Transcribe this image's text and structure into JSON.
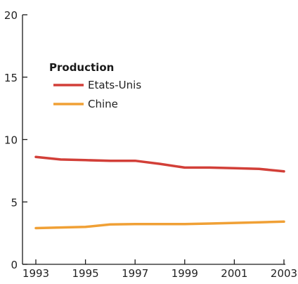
{
  "chart_data": {
    "type": "line",
    "title": "",
    "xlabel": "",
    "ylabel": "",
    "xlim": [
      1993,
      2003
    ],
    "ylim": [
      0,
      20
    ],
    "grid": false,
    "x_ticks": [
      1993,
      1995,
      1997,
      1999,
      2001,
      2003
    ],
    "y_ticks": [
      0,
      5,
      10,
      15,
      20
    ],
    "legend": {
      "title": "Production",
      "placement": "top-left"
    },
    "x": [
      1993,
      1994,
      1995,
      1996,
      1997,
      1998,
      1999,
      2000,
      2001,
      2002,
      2003
    ],
    "series": [
      {
        "name": "Etats-Unis",
        "color": "#d23f38",
        "values": [
          8.6,
          8.4,
          8.35,
          8.3,
          8.3,
          8.05,
          7.75,
          7.75,
          7.7,
          7.65,
          7.45
        ]
      },
      {
        "name": "Chine",
        "color": "#f0a035",
        "values": [
          2.9,
          2.95,
          3.0,
          3.2,
          3.22,
          3.22,
          3.22,
          3.27,
          3.32,
          3.37,
          3.42
        ]
      }
    ]
  }
}
